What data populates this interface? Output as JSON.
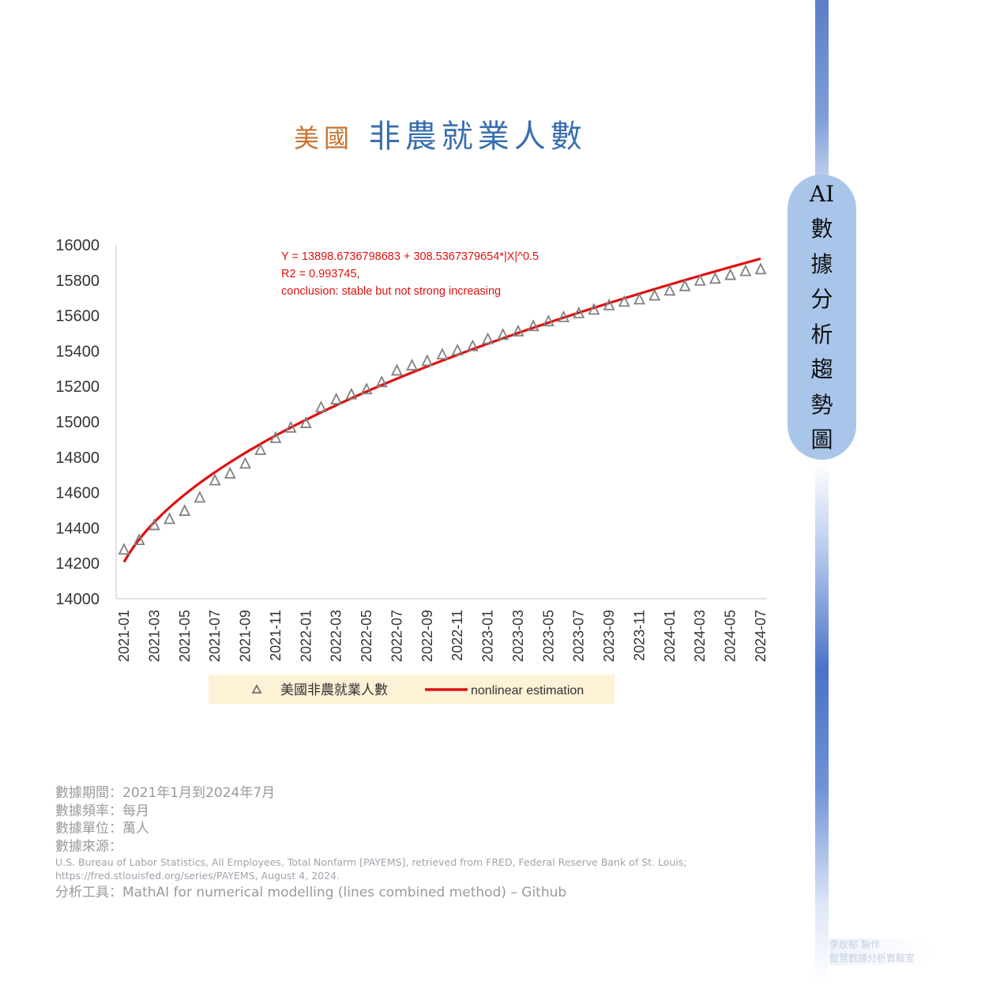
{
  "title_part1": "美國",
  "title_part2": "非農就業人數",
  "sidebar_label": [
    "AI",
    "數",
    "據",
    "分",
    "析",
    "趨",
    "勢",
    "圖"
  ],
  "equation": "Y = 13898.6736798683   + 308.5367379654*|X|^0.5",
  "r2": "R2 = 0.993745,",
  "conclusion": "conclusion: stable but not strong increasing",
  "meta": {
    "period": "數據期間：2021年1月到2024年7月",
    "frequency": "數據頻率：每月",
    "unit": "數據單位：萬人",
    "source_label": "數據來源：",
    "source_line1": "U.S. Bureau of Labor Statistics, All Employees, Total Nonfarm [PAYEMS], retrieved from FRED, Federal Reserve Bank of St. Louis;",
    "source_line2": "https://fred.stlouisfed.org/series/PAYEMS, August 4, 2024.",
    "tool": "分析工具：MathAI for numerical modelling (lines combined method) – Github"
  },
  "credit": [
    "李玫郁 製作",
    "智慧數據分析實驗室"
  ],
  "chart_data": {
    "type": "scatter",
    "ylim": [
      14000,
      16000
    ],
    "y_ticks": [
      14000,
      14200,
      14400,
      14600,
      14800,
      15000,
      15200,
      15400,
      15600,
      15800,
      16000
    ],
    "x_tick_labels": [
      "2021-01",
      "2021-03",
      "2021-05",
      "2021-07",
      "2021-09",
      "2021-11",
      "2022-01",
      "2022-03",
      "2022-05",
      "2022-07",
      "2022-09",
      "2022-11",
      "2023-01",
      "2023-03",
      "2023-05",
      "2023-07",
      "2023-09",
      "2023-11",
      "2024-01",
      "2024-03",
      "2024-05",
      "2024-07"
    ],
    "x": [
      "2021-01",
      "2021-02",
      "2021-03",
      "2021-04",
      "2021-05",
      "2021-06",
      "2021-07",
      "2021-08",
      "2021-09",
      "2021-10",
      "2021-11",
      "2021-12",
      "2022-01",
      "2022-02",
      "2022-03",
      "2022-04",
      "2022-05",
      "2022-06",
      "2022-07",
      "2022-08",
      "2022-09",
      "2022-10",
      "2022-11",
      "2022-12",
      "2023-01",
      "2023-02",
      "2023-03",
      "2023-04",
      "2023-05",
      "2023-06",
      "2023-07",
      "2023-08",
      "2023-09",
      "2023-10",
      "2023-11",
      "2023-12",
      "2024-01",
      "2024-02",
      "2024-03",
      "2024-04",
      "2024-05",
      "2024-06",
      "2024-07"
    ],
    "series": [
      {
        "name": "美國非農就業人數",
        "marker": "triangle",
        "color": "#808080",
        "values": [
          14278,
          14332,
          14416,
          14451,
          14497,
          14572,
          14669,
          14708,
          14764,
          14841,
          14909,
          14967,
          14993,
          15082,
          15127,
          15155,
          15184,
          15224,
          15290,
          15319,
          15344,
          15381,
          15404,
          15428,
          15468,
          15492,
          15511,
          15541,
          15568,
          15592,
          15614,
          15634,
          15659,
          15679,
          15692,
          15714,
          15742,
          15767,
          15798,
          15809,
          15830,
          15852,
          15862
        ]
      },
      {
        "name": "nonlinear estimation",
        "type": "line",
        "color": "#e01010",
        "formula": "13898.6736798683 + 308.5367379654*sqrt(x)",
        "x_index_start": 1
      }
    ],
    "legend": "bottom",
    "grid": false
  }
}
